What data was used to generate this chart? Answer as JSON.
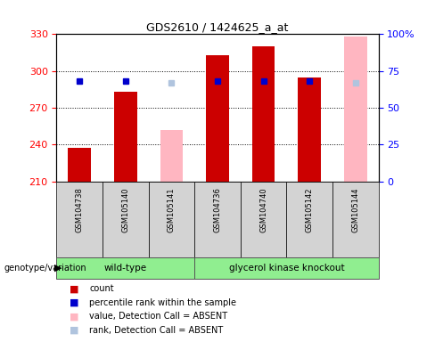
{
  "title": "GDS2610 / 1424625_a_at",
  "samples": [
    "GSM104738",
    "GSM105140",
    "GSM105141",
    "GSM104736",
    "GSM104740",
    "GSM105142",
    "GSM105144"
  ],
  "count_values": [
    237,
    283,
    null,
    313,
    320,
    295,
    null
  ],
  "percentile_rank": [
    68,
    68,
    null,
    68,
    68,
    68,
    null
  ],
  "absent_value": [
    null,
    null,
    252,
    null,
    null,
    null,
    328
  ],
  "absent_rank": [
    null,
    null,
    67,
    null,
    null,
    null,
    67
  ],
  "ylim_left": [
    210,
    330
  ],
  "ylim_right": [
    0,
    100
  ],
  "yticks_left": [
    210,
    240,
    270,
    300,
    330
  ],
  "yticks_right": [
    0,
    25,
    50,
    75,
    100
  ],
  "group1_label": "wild-type",
  "group2_label": "glycerol kinase knockout",
  "count_color": "#cc0000",
  "rank_color": "#0000cc",
  "absent_value_color": "#ffb6c1",
  "absent_rank_color": "#b0c4de",
  "sample_bg_color": "#d3d3d3",
  "group_color": "#90ee90",
  "legend_items": [
    {
      "label": "count",
      "color": "#cc0000"
    },
    {
      "label": "percentile rank within the sample",
      "color": "#0000cc"
    },
    {
      "label": "value, Detection Call = ABSENT",
      "color": "#ffb6c1"
    },
    {
      "label": "rank, Detection Call = ABSENT",
      "color": "#b0c4de"
    }
  ]
}
